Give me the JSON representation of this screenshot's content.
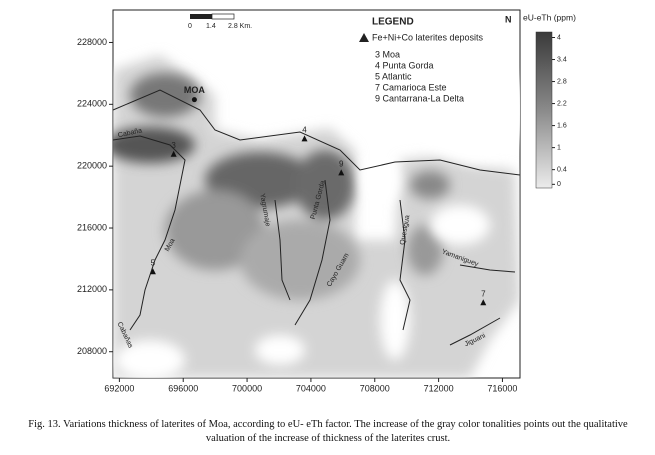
{
  "map": {
    "xlim": [
      691600,
      717100
    ],
    "ylim": [
      206300,
      230100
    ],
    "xticks": [
      692000,
      696000,
      700000,
      704000,
      708000,
      712000,
      716000
    ],
    "yticks": [
      208000,
      212000,
      216000,
      220000,
      224000,
      228000
    ],
    "town": {
      "label": "MOA",
      "x": 696700,
      "y": 224300
    },
    "deposits": [
      {
        "label": "3",
        "x": 695400,
        "y": 220800
      },
      {
        "label": "4",
        "x": 703600,
        "y": 221800
      },
      {
        "label": "9",
        "x": 705900,
        "y": 219600
      },
      {
        "label": "5",
        "x": 694100,
        "y": 213200
      },
      {
        "label": "7",
        "x": 714800,
        "y": 211200
      }
    ],
    "rivers": [
      "Cabaña",
      "Moa",
      "Yagrumaje",
      "Punta Gorda",
      "Cayo Guam",
      "Quesigua",
      "Yamaniguey",
      "Jiguani",
      "Cabañas"
    ],
    "legend": {
      "title": "LEGEND",
      "symbol": "Fe+Ni+Co laterites deposits",
      "entries": [
        "3  Moa",
        "4  Punta Gorda",
        "5  Atlantic",
        "7  Camarioca Este",
        "9  Cantarrana-La Delta"
      ]
    },
    "scale": [
      "0",
      "1.4",
      "2.8 Km."
    ],
    "north": "N",
    "colorbar": {
      "title": "eU-eTh (ppm)",
      "lim": [
        -0.1,
        4.15
      ],
      "ticks": [
        4,
        3.4,
        2.8,
        2.2,
        1.6,
        1,
        0.4,
        0
      ]
    }
  },
  "caption": "Fig. 13. Variations thickness of laterites of Moa, according to eU- eTh factor. The increase of the gray color tonalities points out the qualitative valuation of the increase of thickness of the laterites crust."
}
